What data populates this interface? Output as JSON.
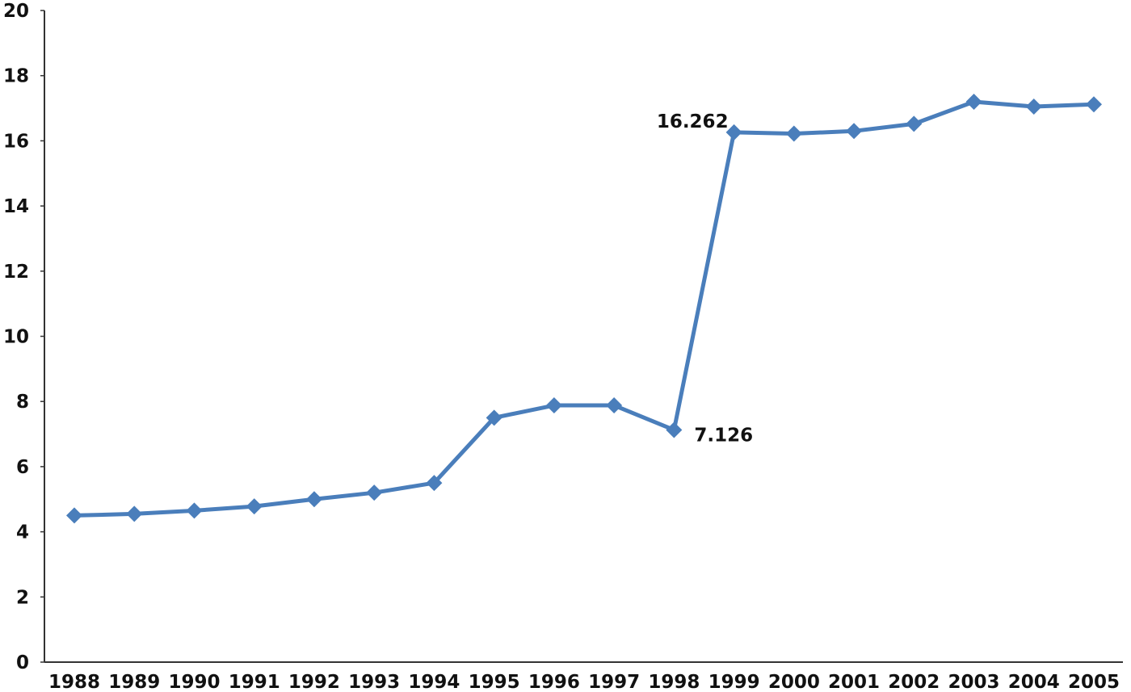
{
  "chart_data": {
    "type": "line",
    "x": [
      "1988",
      "1989",
      "1990",
      "1991",
      "1992",
      "1993",
      "1994",
      "1995",
      "1996",
      "1997",
      "1998",
      "1999",
      "2000",
      "2001",
      "2002",
      "2003",
      "2004",
      "2005"
    ],
    "series": [
      {
        "values": [
          4.5,
          4.55,
          4.65,
          4.78,
          5.0,
          5.2,
          5.5,
          7.5,
          7.88,
          7.88,
          7.126,
          16.262,
          16.22,
          16.3,
          16.52,
          17.2,
          17.05,
          17.12
        ]
      }
    ],
    "y_ticks": [
      "0",
      "2",
      "4",
      "6",
      "8",
      "10",
      "12",
      "14",
      "16",
      "18",
      "20"
    ],
    "ylim": [
      0,
      20
    ],
    "annotations": [
      {
        "index": 11,
        "text": "16.262",
        "side": "left"
      },
      {
        "index": 10,
        "text": "7.126",
        "side": "right"
      }
    ],
    "grid": false,
    "legend": "none",
    "title": "",
    "xlabel": "",
    "ylabel": "",
    "colors": {
      "line": "#4a7ebb",
      "axis": "#333333"
    },
    "marker": "diamond"
  }
}
